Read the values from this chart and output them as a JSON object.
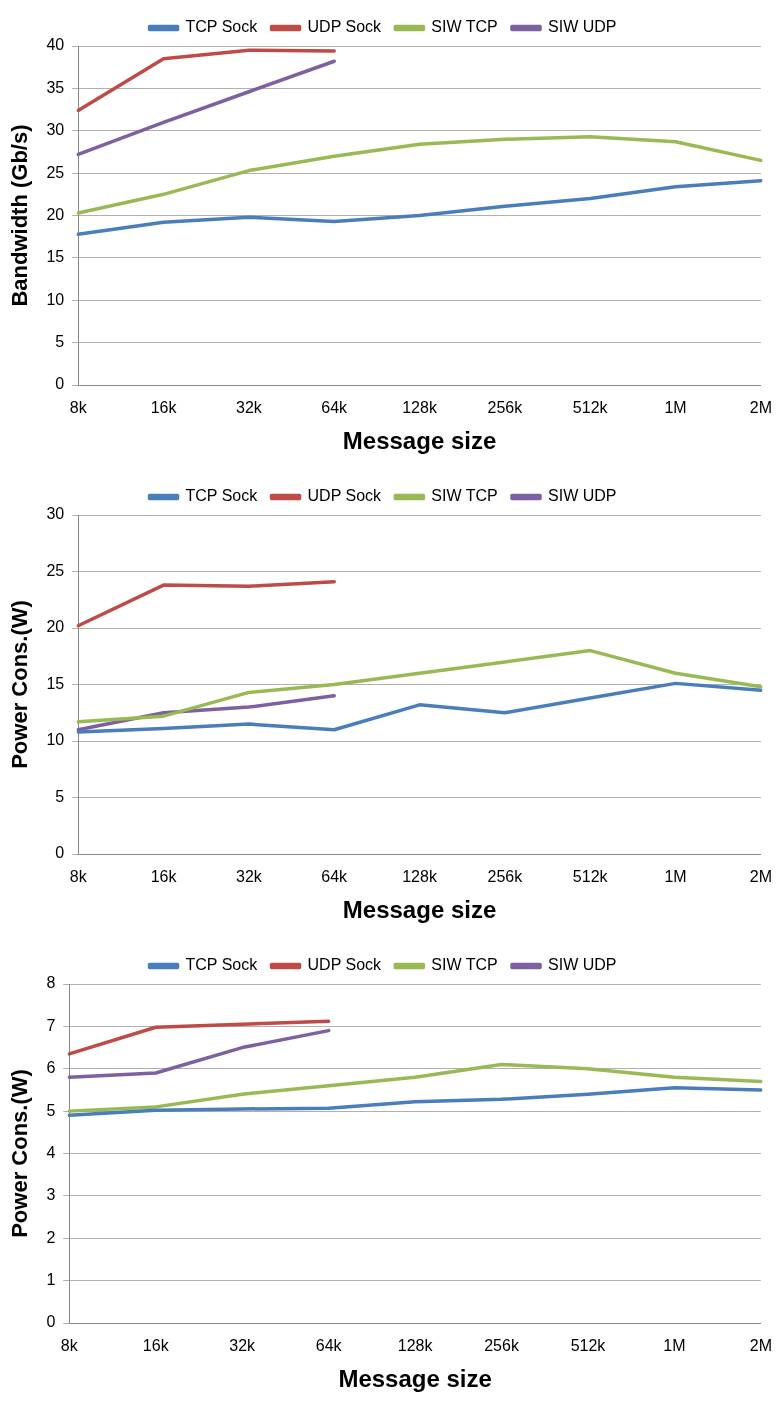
{
  "chart_data": [
    {
      "type": "line",
      "xlabel": "Message size",
      "ylabel": "Bandwidth (Gb/s)",
      "categories": [
        "8k",
        "16k",
        "32k",
        "64k",
        "128k",
        "256k",
        "512k",
        "1M",
        "2M"
      ],
      "ylim": [
        0,
        40
      ],
      "yticks": [
        0,
        5,
        10,
        15,
        20,
        25,
        30,
        35,
        40
      ],
      "grid": "y",
      "legend": "top",
      "marker": "none",
      "series": [
        {
          "name": "TCP Sock",
          "color": "#4a7ebb",
          "values": [
            17.8,
            19.2,
            19.8,
            19.3,
            20.0,
            21.1,
            22.0,
            23.4,
            24.1
          ]
        },
        {
          "name": "UDP Sock",
          "color": "#be4b48",
          "values": [
            32.4,
            38.5,
            39.5,
            39.4,
            null,
            null,
            null,
            null,
            null
          ]
        },
        {
          "name": "SIW TCP",
          "color": "#98b954",
          "values": [
            20.3,
            22.5,
            25.3,
            27.0,
            28.4,
            29.0,
            29.3,
            28.7,
            26.5
          ]
        },
        {
          "name": "SIW UDP",
          "color": "#7d60a0",
          "values": [
            27.2,
            31.0,
            34.6,
            38.2,
            null,
            null,
            null,
            null,
            null
          ]
        }
      ]
    },
    {
      "type": "line",
      "xlabel": "Message size",
      "ylabel": "Power Cons.(W)",
      "categories": [
        "8k",
        "16k",
        "32k",
        "64k",
        "128k",
        "256k",
        "512k",
        "1M",
        "2M"
      ],
      "ylim": [
        0,
        30
      ],
      "yticks": [
        0,
        5,
        10,
        15,
        20,
        25,
        30
      ],
      "grid": "y",
      "legend": "top",
      "marker": "none",
      "series": [
        {
          "name": "TCP Sock",
          "color": "#4a7ebb",
          "values": [
            10.8,
            11.1,
            11.5,
            11.0,
            13.2,
            12.5,
            13.8,
            15.1,
            14.5
          ]
        },
        {
          "name": "UDP Sock",
          "color": "#be4b48",
          "values": [
            20.2,
            23.8,
            23.7,
            24.1,
            null,
            null,
            null,
            null,
            null
          ]
        },
        {
          "name": "SIW TCP",
          "color": "#98b954",
          "values": [
            11.7,
            12.2,
            14.3,
            15.0,
            16.0,
            17.0,
            18.0,
            16.0,
            14.8
          ]
        },
        {
          "name": "SIW UDP",
          "color": "#7d60a0",
          "values": [
            11.0,
            12.5,
            13.0,
            14.0,
            null,
            null,
            null,
            null,
            null
          ]
        }
      ]
    },
    {
      "type": "line",
      "xlabel": "Message size",
      "ylabel": "Power Cons.(W)",
      "categories": [
        "8k",
        "16k",
        "32k",
        "64k",
        "128k",
        "256k",
        "512k",
        "1M",
        "2M"
      ],
      "ylim": [
        0,
        8
      ],
      "yticks": [
        0,
        1,
        2,
        3,
        4,
        5,
        6,
        7,
        8
      ],
      "grid": "y",
      "legend": "top",
      "marker": "none",
      "series": [
        {
          "name": "TCP Sock",
          "color": "#4a7ebb",
          "values": [
            4.9,
            5.02,
            5.05,
            5.07,
            5.22,
            5.28,
            5.4,
            5.55,
            5.5
          ]
        },
        {
          "name": "UDP Sock",
          "color": "#be4b48",
          "values": [
            6.35,
            6.98,
            7.05,
            7.12,
            null,
            null,
            null,
            null,
            null
          ]
        },
        {
          "name": "SIW TCP",
          "color": "#98b954",
          "values": [
            5.0,
            5.1,
            5.4,
            5.6,
            5.8,
            6.1,
            6.0,
            5.8,
            5.7
          ]
        },
        {
          "name": "SIW UDP",
          "color": "#7d60a0",
          "values": [
            5.8,
            5.9,
            6.5,
            6.9,
            null,
            null,
            null,
            null,
            null
          ]
        }
      ]
    }
  ]
}
